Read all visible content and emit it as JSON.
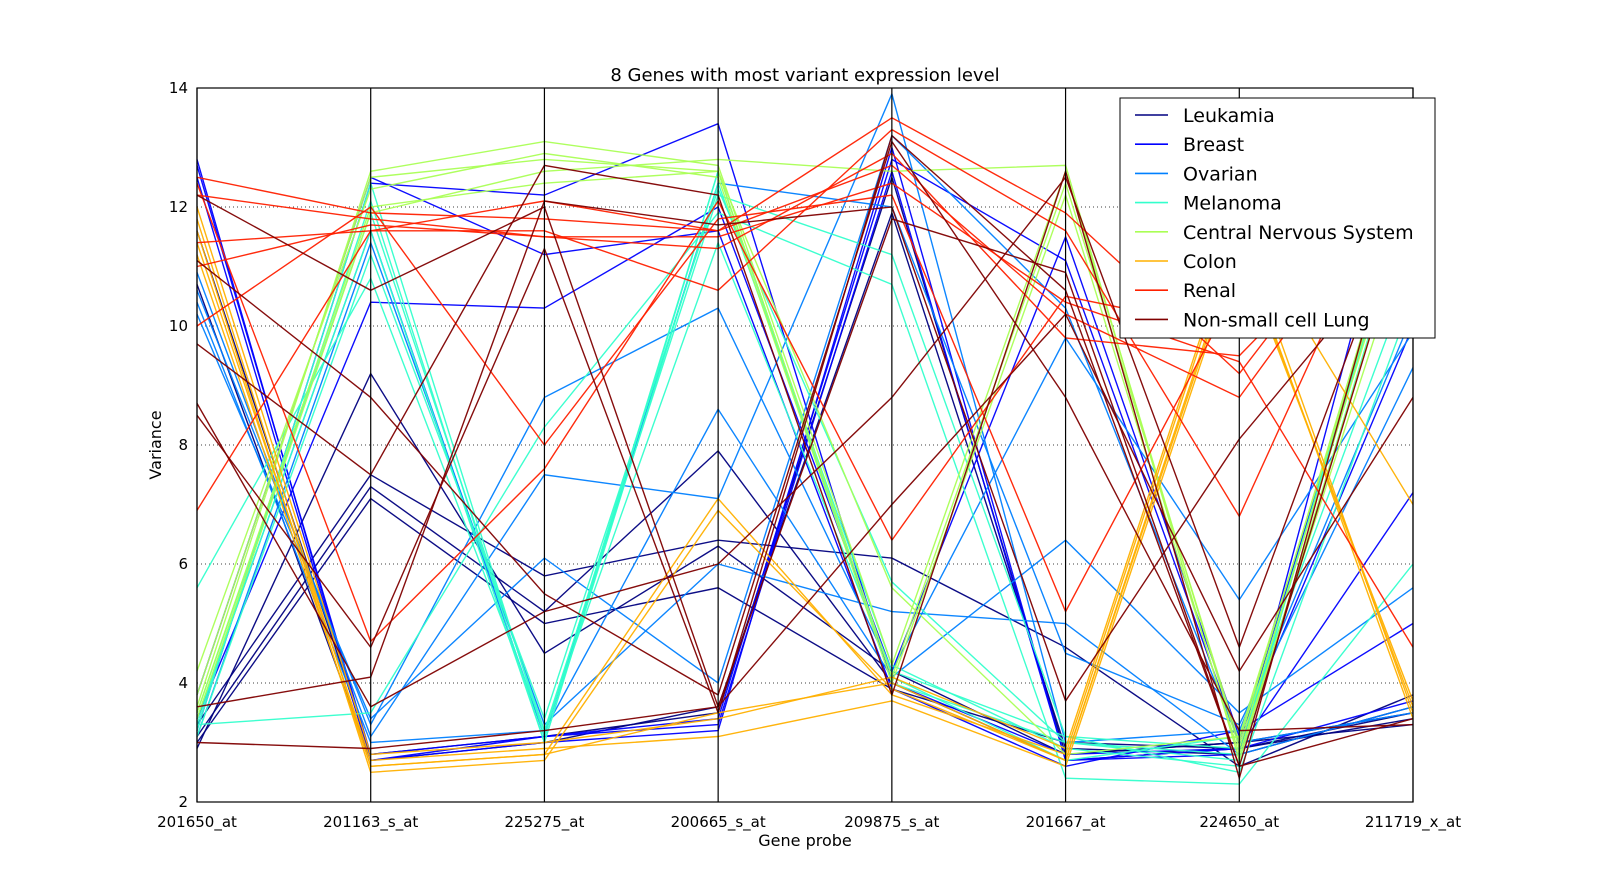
{
  "chart_data": {
    "type": "line",
    "subtype": "parallel_coordinates",
    "title": "8 Genes with most variant expression level",
    "xlabel": "Gene probe",
    "ylabel": "Variance",
    "ylim": [
      2,
      14
    ],
    "yticks": [
      "2",
      "4",
      "6",
      "8",
      "10",
      "12",
      "14"
    ],
    "grid": "horizontal dotted",
    "legend_position": "top-right",
    "categories": [
      "201650_at",
      "201163_s_at",
      "225275_at",
      "200665_s_at",
      "209875_s_at",
      "201667_at",
      "224650_at",
      "211719_x_at"
    ],
    "series": [
      {
        "name": "Leukamia",
        "color": "#000080",
        "profiles": [
          [
            3.1,
            7.3,
            5.2,
            7.9,
            4.0,
            2.7,
            2.9,
            3.5
          ],
          [
            3.3,
            7.5,
            5.8,
            6.4,
            6.1,
            4.6,
            2.6,
            3.8
          ],
          [
            3.0,
            7.1,
            5.0,
            5.6,
            3.9,
            3.0,
            2.9,
            3.4
          ],
          [
            2.9,
            9.2,
            4.5,
            6.3,
            4.2,
            2.8,
            3.0,
            3.3
          ],
          [
            11.6,
            2.8,
            3.1,
            3.5,
            12.5,
            2.8,
            3.0,
            3.5
          ],
          [
            10.7,
            2.7,
            3.0,
            3.6,
            11.9,
            2.9,
            2.8,
            3.6
          ]
        ]
      },
      {
        "name": "Breast",
        "color": "#0000ff",
        "profiles": [
          [
            12.8,
            2.7,
            3.0,
            3.2,
            13.0,
            2.7,
            2.8,
            13.7
          ],
          [
            12.7,
            2.8,
            3.1,
            3.4,
            12.8,
            11.1,
            3.0,
            12.5
          ],
          [
            3.2,
            12.4,
            12.2,
            13.4,
            4.0,
            2.8,
            2.9,
            7.2
          ],
          [
            3.4,
            10.4,
            10.3,
            12.0,
            4.2,
            11.5,
            3.1,
            10.0
          ],
          [
            3.8,
            12.5,
            11.2,
            11.6,
            3.9,
            2.6,
            3.2,
            5.0
          ],
          [
            12.5,
            2.7,
            3.1,
            3.3,
            12.6,
            2.7,
            2.9,
            3.7
          ]
        ]
      },
      {
        "name": "Ovarian",
        "color": "#0080ff",
        "profiles": [
          [
            10.9,
            3.1,
            7.5,
            7.1,
            13.9,
            3.0,
            3.2,
            10.2
          ],
          [
            10.6,
            3.3,
            8.8,
            10.3,
            4.2,
            9.8,
            5.4,
            9.9
          ],
          [
            10.4,
            3.0,
            3.2,
            8.6,
            4.1,
            6.4,
            3.5,
            5.6
          ],
          [
            3.1,
            11.4,
            3.3,
            6.0,
            5.2,
            5.0,
            2.8,
            3.6
          ],
          [
            3.4,
            11.6,
            3.1,
            12.4,
            12.0,
            4.5,
            3.3,
            9.3
          ],
          [
            10.2,
            3.4,
            6.1,
            4.0,
            13.2,
            10.3,
            3.0,
            3.5
          ]
        ]
      },
      {
        "name": "Melanoma",
        "color": "#33ffcc",
        "profiles": [
          [
            3.2,
            12.4,
            3.1,
            12.6,
            4.0,
            3.0,
            2.8,
            12.6
          ],
          [
            3.3,
            12.1,
            3.0,
            12.4,
            4.3,
            2.9,
            2.6,
            12.3
          ],
          [
            3.5,
            11.9,
            3.2,
            12.2,
            11.2,
            3.1,
            2.9,
            12.5
          ],
          [
            3.4,
            11.6,
            3.0,
            12.6,
            4.1,
            2.7,
            3.1,
            11.0
          ],
          [
            3.1,
            11.2,
            3.4,
            12.3,
            5.7,
            3.0,
            2.7,
            12.8
          ],
          [
            5.6,
            10.8,
            3.2,
            11.4,
            4.2,
            3.1,
            2.5,
            10.5
          ],
          [
            3.3,
            3.5,
            8.3,
            11.9,
            10.7,
            2.4,
            2.3,
            6.0
          ]
        ]
      },
      {
        "name": "Central Nervous System",
        "color": "#aaff55",
        "profiles": [
          [
            3.6,
            12.6,
            13.1,
            12.7,
            4.3,
            12.6,
            2.9,
            12.4
          ],
          [
            3.8,
            12.5,
            12.8,
            12.6,
            4.1,
            12.4,
            3.0,
            12.7
          ],
          [
            3.4,
            11.9,
            12.6,
            12.8,
            12.6,
            12.7,
            2.7,
            12.2
          ],
          [
            4.2,
            12.3,
            12.9,
            12.5,
            4.0,
            12.2,
            2.8,
            11.8
          ],
          [
            3.5,
            12.0,
            12.4,
            12.6,
            5.6,
            2.8,
            3.1,
            12.5
          ]
        ]
      },
      {
        "name": "Colon",
        "color": "#ffb000",
        "profiles": [
          [
            11.8,
            2.6,
            2.8,
            7.1,
            3.8,
            2.8,
            11.7,
            3.5
          ],
          [
            11.6,
            2.5,
            2.7,
            6.9,
            3.9,
            2.7,
            11.5,
            3.4
          ],
          [
            11.4,
            2.7,
            2.9,
            3.1,
            3.7,
            2.6,
            11.3,
            3.7
          ],
          [
            12.0,
            2.8,
            3.0,
            3.4,
            4.1,
            2.9,
            11.8,
            7.0
          ],
          [
            11.2,
            2.6,
            2.8,
            3.5,
            4.0,
            2.7,
            11.4,
            3.6
          ]
        ]
      },
      {
        "name": "Renal",
        "color": "#ff2000",
        "profiles": [
          [
            12.5,
            11.9,
            11.8,
            11.6,
            13.5,
            11.9,
            9.2,
            13.0
          ],
          [
            12.2,
            11.8,
            11.5,
            11.3,
            12.9,
            9.8,
            9.5,
            12.5
          ],
          [
            11.4,
            11.6,
            12.1,
            11.6,
            12.7,
            10.2,
            8.8,
            12.8
          ],
          [
            10.0,
            12.0,
            8.0,
            11.8,
            12.2,
            5.2,
            10.7,
            12.0
          ],
          [
            6.9,
            11.6,
            11.6,
            10.6,
            13.3,
            11.6,
            6.8,
            13.2
          ],
          [
            12.4,
            4.7,
            7.6,
            12.1,
            6.4,
            10.5,
            9.9,
            12.3
          ],
          [
            11.0,
            11.7,
            11.5,
            11.5,
            12.4,
            10.4,
            9.4,
            4.6
          ]
        ]
      },
      {
        "name": "Non-small cell Lung",
        "color": "#800000",
        "profiles": [
          [
            9.7,
            7.5,
            12.7,
            12.2,
            3.8,
            12.6,
            2.4,
            12.9
          ],
          [
            8.5,
            4.6,
            11.3,
            3.5,
            13.2,
            10.6,
            2.6,
            12.2
          ],
          [
            8.7,
            3.6,
            5.2,
            6.0,
            8.8,
            12.5,
            4.6,
            12.5
          ],
          [
            3.6,
            4.1,
            12.1,
            11.7,
            12.0,
            3.7,
            8.1,
            11.6
          ],
          [
            11.1,
            8.8,
            5.5,
            3.8,
            13.1,
            8.8,
            3.2,
            3.3
          ],
          [
            12.2,
            10.6,
            12.0,
            3.6,
            7.0,
            10.2,
            4.2,
            8.8
          ],
          [
            3.0,
            2.9,
            3.2,
            3.6,
            11.8,
            10.9,
            2.6,
            3.4
          ]
        ]
      }
    ]
  }
}
